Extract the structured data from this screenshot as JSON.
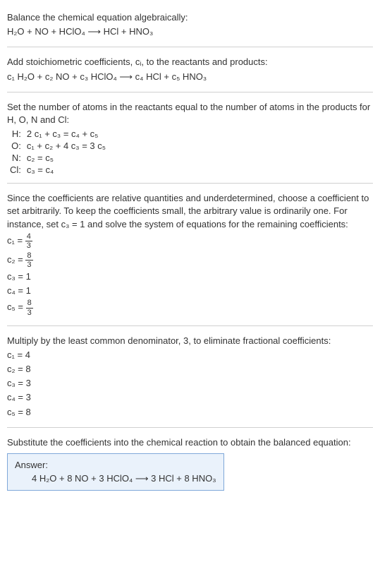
{
  "colors": {
    "text": "#333333",
    "rule": "#d0d0d0",
    "answer_border": "#7fa8d9",
    "answer_bg": "#eaf2fb",
    "background": "#ffffff"
  },
  "typography": {
    "base_fontsize": 13,
    "sub_fontsize": 10,
    "frac_fontsize": 11
  },
  "t": {
    "s1_l1": "Balance the chemical equation algebraically:",
    "s1_l2": "H₂O + NO + HClO₄  ⟶  HCl + HNO₃",
    "s2_l1": "Add stoichiometric coefficients, cᵢ, to the reactants and products:",
    "s2_l2": "c₁ H₂O + c₂ NO + c₃ HClO₄  ⟶  c₄ HCl + c₅ HNO₃",
    "s3_l1": "Set the number of atoms in the reactants equal to the number of atoms in the products for H, O, N and Cl:",
    "eq_H_lhs": "H:",
    "eq_H_rhs": "2 c₁ + c₃ = c₄ + c₅",
    "eq_O_lhs": "O:",
    "eq_O_rhs": "c₁ + c₂ + 4 c₃ = 3 c₅",
    "eq_N_lhs": "N:",
    "eq_N_rhs": "c₂ = c₅",
    "eq_Cl_lhs": "Cl:",
    "eq_Cl_rhs": "c₃ = c₄",
    "s4_l1": "Since the coefficients are relative quantities and underdetermined, choose a coefficient to set arbitrarily. To keep the coefficients small, the arbitrary value is ordinarily one. For instance, set c₃ = 1 and solve the system of equations for the remaining coefficients:",
    "c1_lhs": "c₁ = ",
    "c1_num": "4",
    "c1_den": "3",
    "c2_lhs": "c₂ = ",
    "c2_num": "8",
    "c2_den": "3",
    "c3_line": "c₃ = 1",
    "c4_line": "c₄ = 1",
    "c5_lhs": "c₅ = ",
    "c5_num": "8",
    "c5_den": "3",
    "s5_l1": "Multiply by the least common denominator, 3, to eliminate fractional coefficients:",
    "m_c1": "c₁ = 4",
    "m_c2": "c₂ = 8",
    "m_c3": "c₃ = 3",
    "m_c4": "c₄ = 3",
    "m_c5": "c₅ = 8",
    "s6_l1": "Substitute the coefficients into the chemical reaction to obtain the balanced equation:",
    "answer_label": "Answer:",
    "answer_eq": "4 H₂O + 8 NO + 3 HClO₄  ⟶  3 HCl + 8 HNO₃"
  }
}
